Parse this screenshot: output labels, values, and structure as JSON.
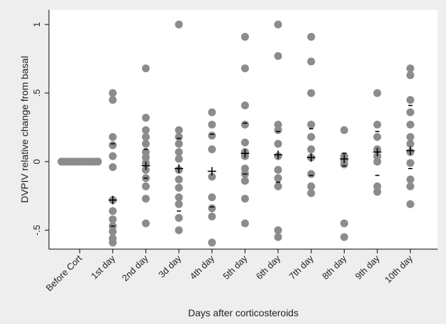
{
  "chart_data": {
    "type": "scatter",
    "xlabel": "Days after corticosteroids",
    "ylabel": "DVPIV relative change from basal",
    "categories": [
      "Before Cort",
      "1st day",
      "2nd day",
      "3d day",
      "4th day",
      "5th day",
      "6th day",
      "7th day",
      "8th day",
      "9th day",
      "10th day"
    ],
    "y_ticks": [
      {
        "value": 1,
        "label": "1"
      },
      {
        "value": 0.5,
        "label": ".5"
      },
      {
        "value": 0,
        "label": "0"
      },
      {
        "value": -0.5,
        "label": "-.5"
      }
    ],
    "ylim": [
      -0.62,
      1.05
    ],
    "grid": false,
    "colors": {
      "points": "#8c8c8c",
      "marks": "#000000",
      "plot_bg": "#ffffff",
      "outer_bg": "#eeeeee"
    },
    "points": [
      [
        0,
        0
      ],
      [
        0,
        0
      ],
      [
        0,
        0
      ],
      [
        0,
        0
      ],
      [
        0,
        0
      ],
      [
        0,
        0
      ],
      [
        0,
        0
      ],
      [
        0,
        0
      ],
      [
        0,
        0
      ],
      [
        0,
        0
      ],
      [
        0,
        0
      ],
      [
        0,
        0
      ],
      [
        0,
        0
      ],
      [
        1,
        0.5
      ],
      [
        1,
        0.45
      ],
      [
        1,
        0.18
      ],
      [
        1,
        0.12
      ],
      [
        1,
        0.04
      ],
      [
        1,
        -0.04
      ],
      [
        1,
        -0.28
      ],
      [
        1,
        -0.36
      ],
      [
        1,
        -0.42
      ],
      [
        1,
        -0.47
      ],
      [
        1,
        -0.51
      ],
      [
        1,
        -0.56
      ],
      [
        1,
        -0.59
      ],
      [
        2,
        0.68
      ],
      [
        2,
        0.32
      ],
      [
        2,
        0.23
      ],
      [
        2,
        0.18
      ],
      [
        2,
        0.13
      ],
      [
        2,
        0.07
      ],
      [
        2,
        0.03
      ],
      [
        2,
        -0.01
      ],
      [
        2,
        -0.06
      ],
      [
        2,
        -0.12
      ],
      [
        2,
        -0.18
      ],
      [
        2,
        -0.27
      ],
      [
        2,
        -0.45
      ],
      [
        3,
        1.0
      ],
      [
        3,
        0.23
      ],
      [
        3,
        0.18
      ],
      [
        3,
        0.13
      ],
      [
        3,
        0.07
      ],
      [
        3,
        0.02
      ],
      [
        3,
        -0.06
      ],
      [
        3,
        -0.13
      ],
      [
        3,
        -0.19
      ],
      [
        3,
        -0.26
      ],
      [
        3,
        -0.31
      ],
      [
        3,
        -0.41
      ],
      [
        3,
        -0.5
      ],
      [
        4,
        0.36
      ],
      [
        4,
        0.27
      ],
      [
        4,
        0.19
      ],
      [
        4,
        0.09
      ],
      [
        4,
        -0.11
      ],
      [
        4,
        -0.26
      ],
      [
        4,
        -0.34
      ],
      [
        4,
        -0.4
      ],
      [
        4,
        -0.59
      ],
      [
        5,
        0.91
      ],
      [
        5,
        0.68
      ],
      [
        5,
        0.41
      ],
      [
        5,
        0.27
      ],
      [
        5,
        0.14
      ],
      [
        5,
        0.07
      ],
      [
        5,
        0.04
      ],
      [
        5,
        -0.05
      ],
      [
        5,
        -0.09
      ],
      [
        5,
        -0.14
      ],
      [
        5,
        -0.27
      ],
      [
        5,
        -0.45
      ],
      [
        6,
        1.0
      ],
      [
        6,
        0.77
      ],
      [
        6,
        0.27
      ],
      [
        6,
        0.23
      ],
      [
        6,
        0.13
      ],
      [
        6,
        0.04
      ],
      [
        6,
        -0.06
      ],
      [
        6,
        -0.12
      ],
      [
        6,
        -0.18
      ],
      [
        6,
        -0.5
      ],
      [
        6,
        -0.55
      ],
      [
        7,
        0.91
      ],
      [
        7,
        0.73
      ],
      [
        7,
        0.5
      ],
      [
        7,
        0.27
      ],
      [
        7,
        0.18
      ],
      [
        7,
        0.09
      ],
      [
        7,
        0.03
      ],
      [
        7,
        -0.09
      ],
      [
        7,
        -0.18
      ],
      [
        7,
        -0.23
      ],
      [
        8,
        0.23
      ],
      [
        8,
        0.04
      ],
      [
        8,
        0.01
      ],
      [
        8,
        -0.02
      ],
      [
        8,
        -0.45
      ],
      [
        8,
        -0.55
      ],
      [
        9,
        0.5
      ],
      [
        9,
        0.27
      ],
      [
        9,
        0.18
      ],
      [
        9,
        0.09
      ],
      [
        9,
        0.04
      ],
      [
        9,
        0.0
      ],
      [
        9,
        -0.18
      ],
      [
        9,
        -0.22
      ],
      [
        10,
        0.68
      ],
      [
        10,
        0.63
      ],
      [
        10,
        0.45
      ],
      [
        10,
        0.36
      ],
      [
        10,
        0.27
      ],
      [
        10,
        0.18
      ],
      [
        10,
        0.13
      ],
      [
        10,
        0.07
      ],
      [
        10,
        -0.01
      ],
      [
        10,
        -0.13
      ],
      [
        10,
        -0.18
      ],
      [
        10,
        -0.31
      ]
    ],
    "means": [
      {
        "category": 1,
        "value": -0.28
      },
      {
        "category": 2,
        "value": -0.03
      },
      {
        "category": 3,
        "value": -0.05
      },
      {
        "category": 4,
        "value": -0.07
      },
      {
        "category": 5,
        "value": 0.06
      },
      {
        "category": 6,
        "value": 0.05
      },
      {
        "category": 7,
        "value": 0.03
      },
      {
        "category": 8,
        "value": 0.02
      },
      {
        "category": 9,
        "value": 0.07
      },
      {
        "category": 10,
        "value": 0.08
      }
    ],
    "ci_marks": [
      {
        "category": 1,
        "upper": 0.13,
        "lower": -0.47
      },
      {
        "category": 2,
        "upper": 0.09,
        "lower": -0.12
      },
      {
        "category": 3,
        "upper": 0.17,
        "lower": -0.36
      },
      {
        "category": 4,
        "upper": 0.2,
        "lower": -0.33
      },
      {
        "category": 5,
        "upper": 0.28,
        "lower": -0.09
      },
      {
        "category": 6,
        "upper": 0.22,
        "lower": -0.15
      },
      {
        "category": 7,
        "upper": 0.24,
        "lower": -0.1
      },
      {
        "category": 8,
        "upper": 0.06,
        "lower": -0.03
      },
      {
        "category": 9,
        "upper": 0.22,
        "lower": -0.1
      },
      {
        "category": 10,
        "upper": 0.41,
        "lower": -0.05
      }
    ]
  }
}
